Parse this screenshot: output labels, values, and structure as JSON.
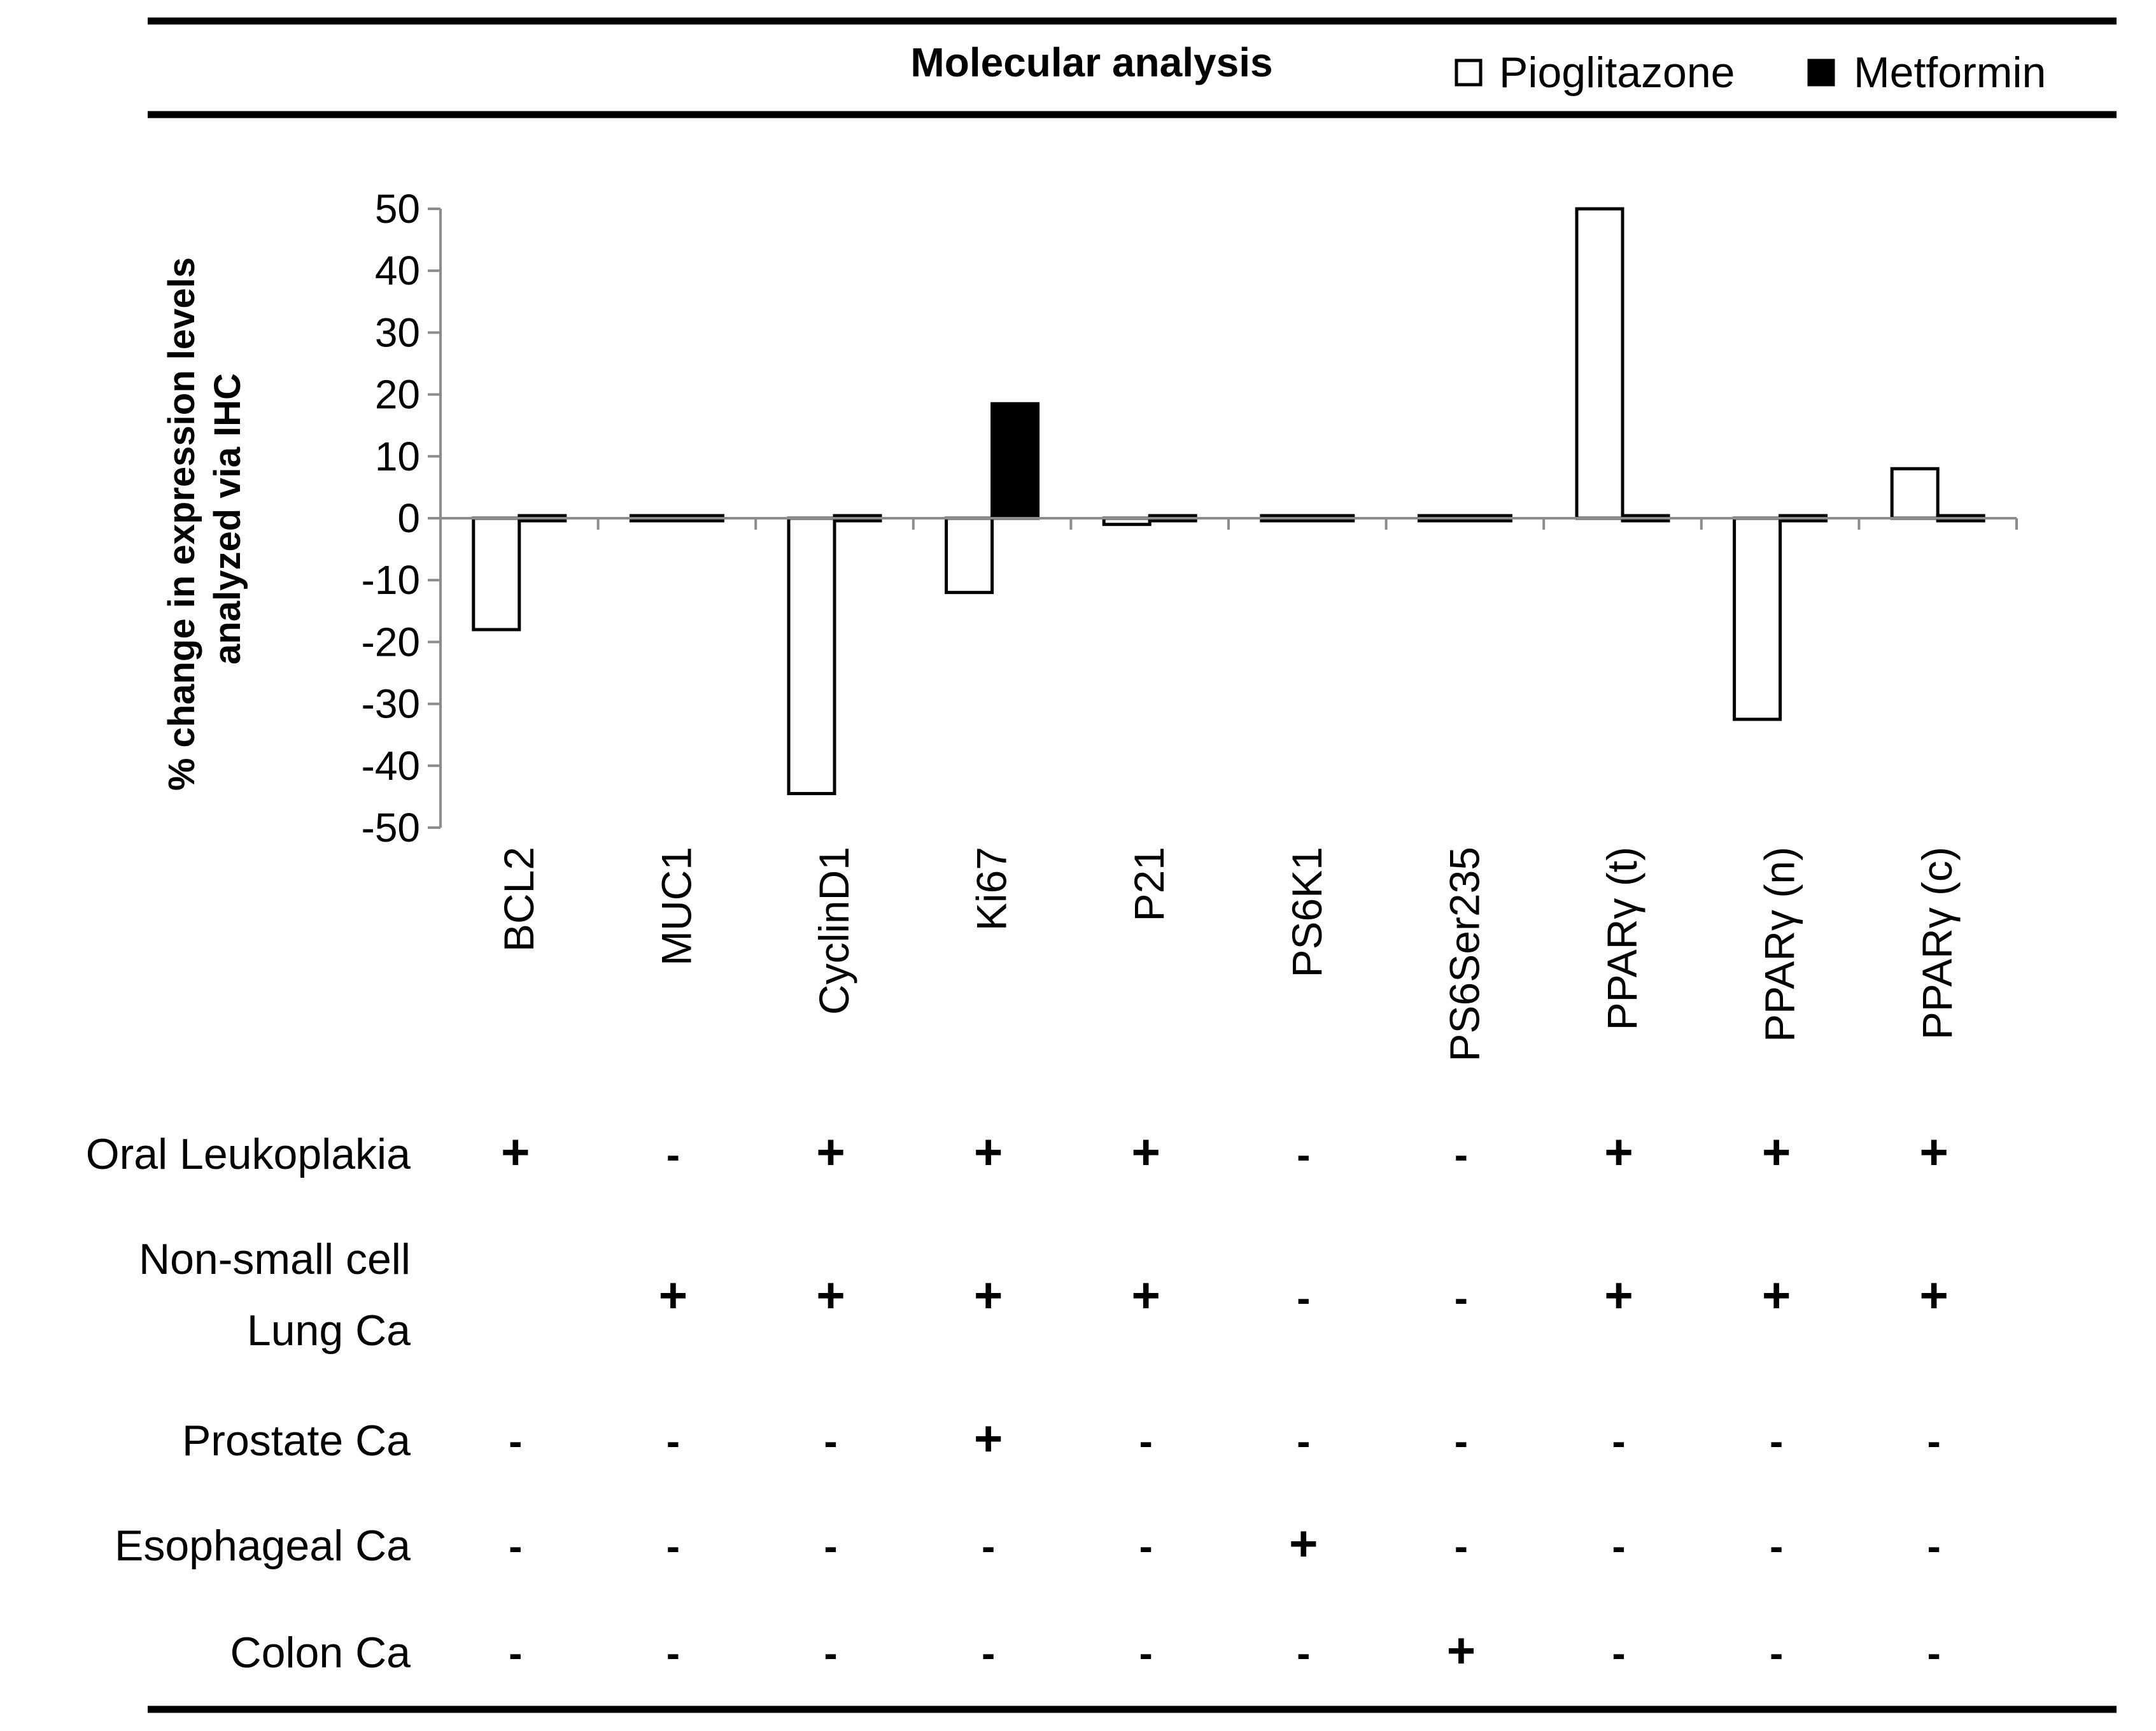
{
  "header": {
    "title": "Molecular analysis",
    "legend": [
      {
        "name": "Pioglitazone",
        "swatch": "#ffffff"
      },
      {
        "name": "Metformin",
        "swatch": "#000000"
      }
    ]
  },
  "chart_data": {
    "type": "bar",
    "title": "Molecular analysis",
    "xlabel": "",
    "ylabel": "% change in expression levels analyzed via IHC",
    "ylim": [
      -50,
      50
    ],
    "yticks": [
      50,
      40,
      30,
      20,
      10,
      0,
      -10,
      -20,
      -30,
      -40,
      -50
    ],
    "categories": [
      "BCL2",
      "MUC1",
      "CyclinD1",
      "Ki67",
      "P21",
      "PS6K1",
      "PS6Ser235",
      "PPARγ (t)",
      "PPARγ (n)",
      "PPARγ (c)"
    ],
    "series": [
      {
        "name": "Pioglitazone",
        "color": "#ffffff",
        "values": [
          -18,
          0,
          -44.5,
          -12,
          -1,
          0,
          0,
          50,
          -32.5,
          8
        ]
      },
      {
        "name": "Metformin",
        "color": "#000000",
        "values": [
          0,
          0,
          0,
          18.5,
          0,
          0,
          0,
          0,
          0,
          0
        ]
      }
    ],
    "legend_position": "top-right"
  },
  "table": {
    "rows": [
      {
        "label": [
          "Oral Leukoplakia"
        ],
        "cells": [
          "+",
          "-",
          "+",
          "+",
          "+",
          "-",
          "-",
          "+",
          "+",
          "+"
        ]
      },
      {
        "label": [
          "Non-small cell",
          "Lung Ca"
        ],
        "cells": [
          "",
          "+",
          "+",
          "+",
          "+",
          "-",
          "-",
          "+",
          "+",
          "+"
        ]
      },
      {
        "label": [
          "Prostate Ca"
        ],
        "cells": [
          "-",
          "-",
          "-",
          "+",
          "-",
          "-",
          "-",
          "-",
          "-",
          "-"
        ]
      },
      {
        "label": [
          "Esophageal Ca"
        ],
        "cells": [
          "-",
          "-",
          "-",
          "-",
          "-",
          "+",
          "-",
          "-",
          "-",
          "-"
        ]
      },
      {
        "label": [
          "Colon Ca"
        ],
        "cells": [
          "-",
          "-",
          "-",
          "-",
          "-",
          "-",
          "+",
          "-",
          "-",
          "-"
        ]
      }
    ]
  }
}
